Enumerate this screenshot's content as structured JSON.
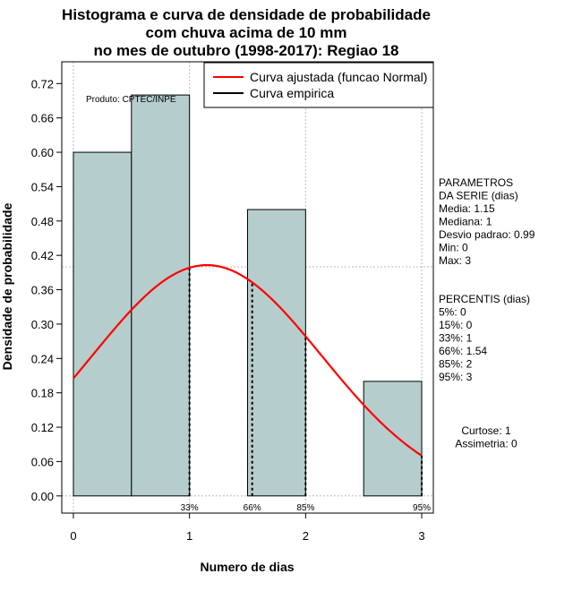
{
  "chart_data": {
    "type": "bar",
    "title_lines": [
      "Histograma e curva de densidade de probabilidade",
      "com chuva acima de 10 mm",
      "no mes de outubro (1998-2017): Regiao 18"
    ],
    "xlabel": "Numero de dias",
    "ylabel": "Densidade de probabilidade",
    "xlim": [
      -0.1,
      3.1
    ],
    "ylim": [
      -0.03,
      0.758
    ],
    "x_ticks": [
      0,
      1,
      2,
      3
    ],
    "y_ticks": [
      "0.00",
      "0.06",
      "0.12",
      "0.18",
      "0.24",
      "0.30",
      "0.36",
      "0.42",
      "0.48",
      "0.54",
      "0.60",
      "0.66",
      "0.72"
    ],
    "bars": [
      {
        "x0": 0.0,
        "x1": 0.5,
        "value": 0.6
      },
      {
        "x0": 0.5,
        "x1": 1.0,
        "value": 0.7
      },
      {
        "x0": 1.5,
        "x1": 2.0,
        "value": 0.5
      },
      {
        "x0": 2.5,
        "x1": 3.0,
        "value": 0.2
      }
    ],
    "bar_color": "#b5cdcd",
    "normal_fit": {
      "mean": 1.15,
      "sd": 0.99,
      "from": 0,
      "to": 3,
      "color": "#ff0000"
    },
    "hline": 0.4,
    "grid_x": [
      0,
      1,
      2,
      3
    ],
    "percentile_lines": [
      {
        "x": 1,
        "label": "33%"
      },
      {
        "x": 1.54,
        "label": "66%"
      },
      {
        "x": 2,
        "label": "85%"
      },
      {
        "x": 3,
        "label": "95%"
      }
    ],
    "legend": [
      {
        "label": "Curva ajustada (funcao Normal)",
        "color": "#ff0000"
      },
      {
        "label": "Curva empirica",
        "color": "#000000"
      }
    ],
    "watermark": "Produto: CPTEC/INPE",
    "params_lines": [
      "PARAMETROS",
      "DA SERIE (dias)",
      "  Media: 1.15",
      "  Mediana: 1",
      "  Desvio padrao: 0.99",
      "  Min: 0",
      "  Max: 3"
    ],
    "percentis_lines": [
      "PERCENTIS (dias)",
      "  5%: 0",
      "  15%: 0",
      "  33%: 1",
      "  66%: 1.54",
      "  85%: 2",
      "  95%: 3"
    ],
    "stats_lines": [
      "Curtose: 1",
      "Assimetria: 0"
    ]
  }
}
